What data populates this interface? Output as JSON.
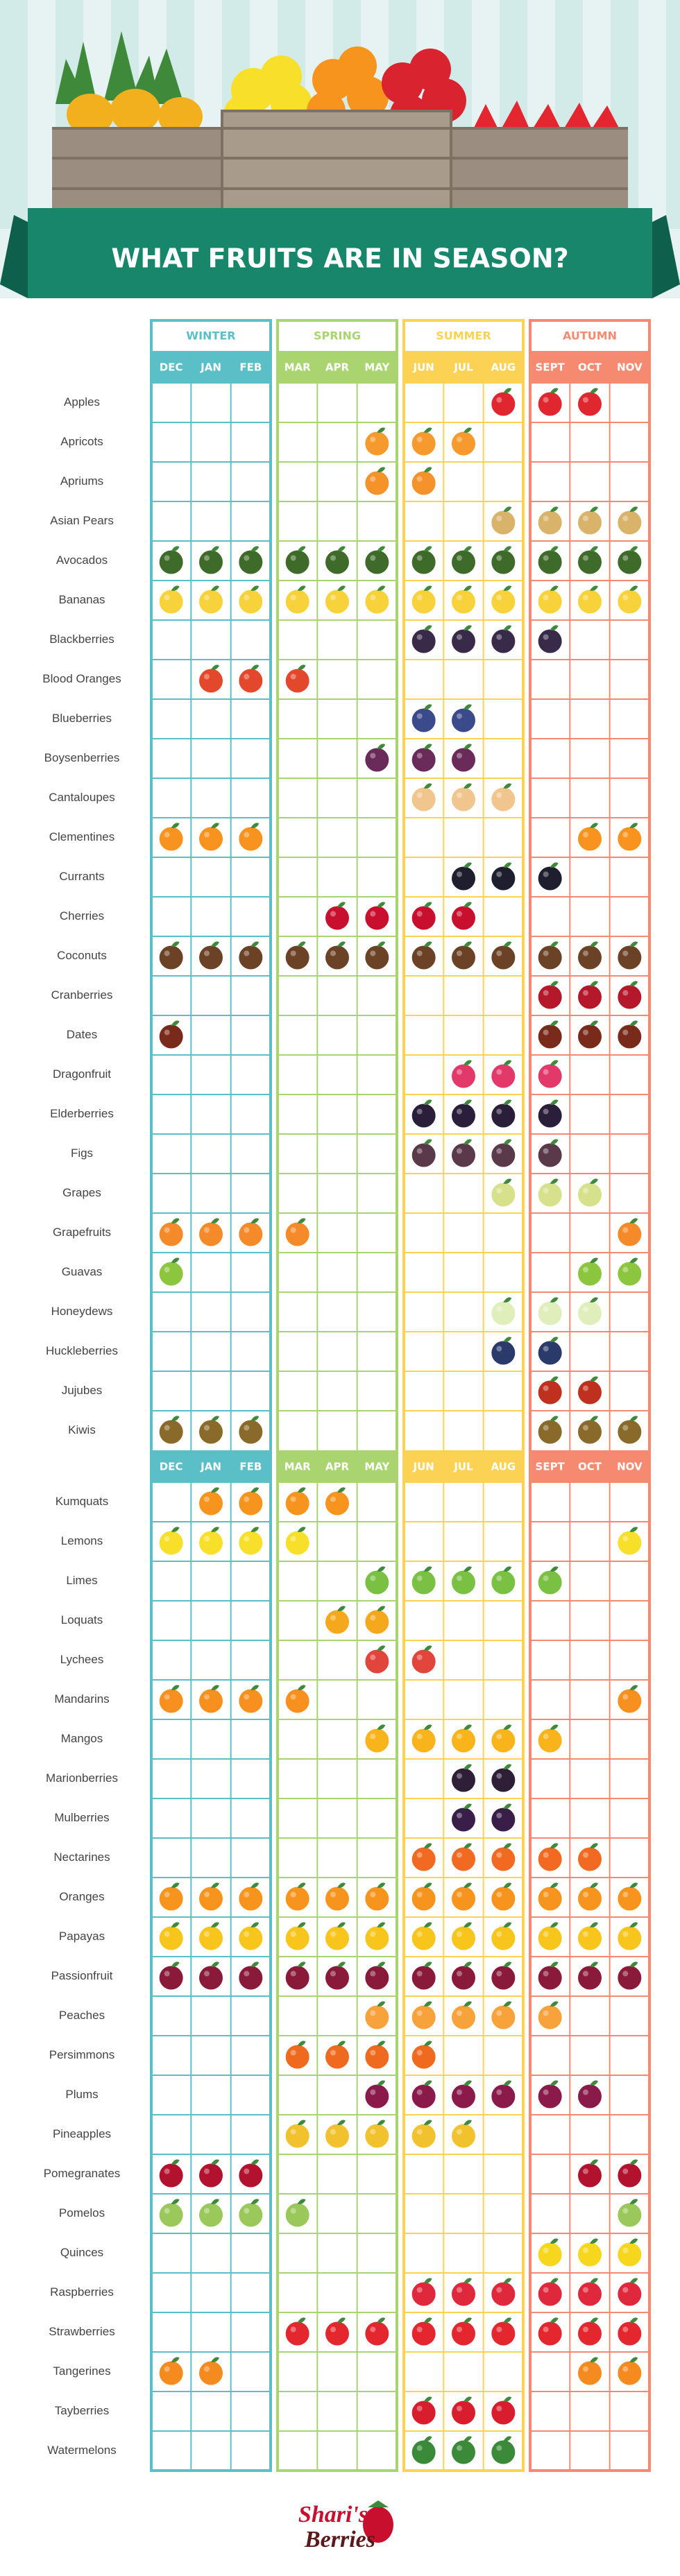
{
  "header": {
    "title": "WHAT FRUITS ARE IN SEASON?"
  },
  "seasons": [
    {
      "name": "WINTER",
      "color": "#5bbfc8",
      "months": [
        "DEC",
        "JAN",
        "FEB"
      ]
    },
    {
      "name": "SPRING",
      "color": "#a9d46f",
      "months": [
        "MAR",
        "APR",
        "MAY"
      ]
    },
    {
      "name": "SUMMER",
      "color": "#fbd254",
      "months": [
        "JUN",
        "JUL",
        "AUG"
      ]
    },
    {
      "name": "AUTUMN",
      "color": "#f68a70",
      "months": [
        "SEPT",
        "OCT",
        "NOV"
      ]
    }
  ],
  "fruits": [
    {
      "name": "Apples",
      "color": "#e0262e",
      "in_season": [
        0,
        0,
        0,
        0,
        0,
        0,
        0,
        0,
        1,
        1,
        1,
        0
      ]
    },
    {
      "name": "Apricots",
      "color": "#f79a2e",
      "in_season": [
        0,
        0,
        0,
        0,
        0,
        1,
        1,
        1,
        0,
        0,
        0,
        0
      ]
    },
    {
      "name": "Apriums",
      "color": "#f5922a",
      "in_season": [
        0,
        0,
        0,
        0,
        0,
        1,
        1,
        0,
        0,
        0,
        0,
        0
      ]
    },
    {
      "name": "Asian Pears",
      "color": "#d9b36a",
      "in_season": [
        0,
        0,
        0,
        0,
        0,
        0,
        0,
        0,
        1,
        1,
        1,
        1
      ]
    },
    {
      "name": "Avocados",
      "color": "#3f6b2a",
      "in_season": [
        1,
        1,
        1,
        1,
        1,
        1,
        1,
        1,
        1,
        1,
        1,
        1
      ]
    },
    {
      "name": "Bananas",
      "color": "#f7d23b",
      "in_season": [
        1,
        1,
        1,
        1,
        1,
        1,
        1,
        1,
        1,
        1,
        1,
        1
      ]
    },
    {
      "name": "Blackberries",
      "color": "#3a2a4a",
      "in_season": [
        0,
        0,
        0,
        0,
        0,
        0,
        1,
        1,
        1,
        1,
        0,
        0
      ]
    },
    {
      "name": "Blood Oranges",
      "color": "#e4482c",
      "in_season": [
        0,
        1,
        1,
        1,
        0,
        0,
        0,
        0,
        0,
        0,
        0,
        0
      ]
    },
    {
      "name": "Blueberries",
      "color": "#3a4a8a",
      "in_season": [
        0,
        0,
        0,
        0,
        0,
        0,
        1,
        1,
        0,
        0,
        0,
        0
      ]
    },
    {
      "name": "Boysenberries",
      "color": "#6a2a5a",
      "in_season": [
        0,
        0,
        0,
        0,
        0,
        1,
        1,
        1,
        0,
        0,
        0,
        0
      ]
    },
    {
      "name": "Cantaloupes",
      "color": "#f1c68e",
      "in_season": [
        0,
        0,
        0,
        0,
        0,
        0,
        1,
        1,
        1,
        0,
        0,
        0
      ]
    },
    {
      "name": "Clementines",
      "color": "#f7931e",
      "in_season": [
        1,
        1,
        1,
        0,
        0,
        0,
        0,
        0,
        0,
        0,
        1,
        1
      ]
    },
    {
      "name": "Currants",
      "color": "#1e1e2e",
      "in_season": [
        0,
        0,
        0,
        0,
        0,
        0,
        0,
        1,
        1,
        1,
        0,
        0
      ]
    },
    {
      "name": "Cherries",
      "color": "#c8102e",
      "in_season": [
        0,
        0,
        0,
        0,
        1,
        1,
        1,
        1,
        0,
        0,
        0,
        0
      ]
    },
    {
      "name": "Coconuts",
      "color": "#6b4226",
      "in_season": [
        1,
        1,
        1,
        1,
        1,
        1,
        1,
        1,
        1,
        1,
        1,
        1
      ]
    },
    {
      "name": "Cranberries",
      "color": "#b5172b",
      "in_season": [
        0,
        0,
        0,
        0,
        0,
        0,
        0,
        0,
        0,
        1,
        1,
        1
      ]
    },
    {
      "name": "Dates",
      "color": "#7a2a1a",
      "in_season": [
        1,
        0,
        0,
        0,
        0,
        0,
        0,
        0,
        0,
        1,
        1,
        1
      ]
    },
    {
      "name": "Dragonfruit",
      "color": "#e2386a",
      "in_season": [
        0,
        0,
        0,
        0,
        0,
        0,
        0,
        1,
        1,
        1,
        0,
        0
      ]
    },
    {
      "name": "Elderberries",
      "color": "#2a1e3a",
      "in_season": [
        0,
        0,
        0,
        0,
        0,
        0,
        1,
        1,
        1,
        1,
        0,
        0
      ]
    },
    {
      "name": "Figs",
      "color": "#5a3a4a",
      "in_season": [
        0,
        0,
        0,
        0,
        0,
        0,
        1,
        1,
        1,
        1,
        0,
        0
      ]
    },
    {
      "name": "Grapes",
      "color": "#d7e08a",
      "in_season": [
        0,
        0,
        0,
        0,
        0,
        0,
        0,
        0,
        1,
        1,
        1,
        0
      ]
    },
    {
      "name": "Grapefruits",
      "color": "#f58a2a",
      "in_season": [
        1,
        1,
        1,
        1,
        0,
        0,
        0,
        0,
        0,
        0,
        0,
        1
      ]
    },
    {
      "name": "Guavas",
      "color": "#8cc63f",
      "in_season": [
        1,
        0,
        0,
        0,
        0,
        0,
        0,
        0,
        0,
        0,
        1,
        1
      ]
    },
    {
      "name": "Honeydews",
      "color": "#dfeebb",
      "in_season": [
        0,
        0,
        0,
        0,
        0,
        0,
        0,
        0,
        1,
        1,
        1,
        0
      ]
    },
    {
      "name": "Huckleberries",
      "color": "#2a3a6a",
      "in_season": [
        0,
        0,
        0,
        0,
        0,
        0,
        0,
        0,
        1,
        1,
        0,
        0
      ]
    },
    {
      "name": "Jujubes",
      "color": "#c0301e",
      "in_season": [
        0,
        0,
        0,
        0,
        0,
        0,
        0,
        0,
        0,
        1,
        1,
        0
      ]
    },
    {
      "name": "Kiwis",
      "color": "#8a6a2a",
      "in_season": [
        1,
        1,
        1,
        0,
        0,
        0,
        0,
        0,
        0,
        1,
        1,
        1
      ]
    },
    {
      "name": "Kumquats",
      "color": "#f7941d",
      "in_season": [
        0,
        1,
        1,
        1,
        1,
        0,
        0,
        0,
        0,
        0,
        0,
        0
      ]
    },
    {
      "name": "Lemons",
      "color": "#f8e02a",
      "in_season": [
        1,
        1,
        1,
        1,
        0,
        0,
        0,
        0,
        0,
        0,
        0,
        1
      ]
    },
    {
      "name": "Limes",
      "color": "#7ac143",
      "in_season": [
        0,
        0,
        0,
        0,
        0,
        1,
        1,
        1,
        1,
        1,
        0,
        0
      ]
    },
    {
      "name": "Loquats",
      "color": "#f6a81c",
      "in_season": [
        0,
        0,
        0,
        0,
        1,
        1,
        0,
        0,
        0,
        0,
        0,
        0
      ]
    },
    {
      "name": "Lychees",
      "color": "#e2453c",
      "in_season": [
        0,
        0,
        0,
        0,
        0,
        1,
        1,
        0,
        0,
        0,
        0,
        0
      ]
    },
    {
      "name": "Mandarins",
      "color": "#f7901e",
      "in_season": [
        1,
        1,
        1,
        1,
        0,
        0,
        0,
        0,
        0,
        0,
        0,
        1
      ]
    },
    {
      "name": "Mangos",
      "color": "#f9b41b",
      "in_season": [
        0,
        0,
        0,
        0,
        0,
        1,
        1,
        1,
        1,
        1,
        0,
        0
      ]
    },
    {
      "name": "Marionberries",
      "color": "#2e1e36",
      "in_season": [
        0,
        0,
        0,
        0,
        0,
        0,
        0,
        1,
        1,
        0,
        0,
        0
      ]
    },
    {
      "name": "Mulberries",
      "color": "#3a1e4a",
      "in_season": [
        0,
        0,
        0,
        0,
        0,
        0,
        0,
        1,
        1,
        0,
        0,
        0
      ]
    },
    {
      "name": "Nectarines",
      "color": "#f26a21",
      "in_season": [
        0,
        0,
        0,
        0,
        0,
        0,
        1,
        1,
        1,
        1,
        1,
        0
      ]
    },
    {
      "name": "Oranges",
      "color": "#f7941d",
      "in_season": [
        1,
        1,
        1,
        1,
        1,
        1,
        1,
        1,
        1,
        1,
        1,
        1
      ]
    },
    {
      "name": "Papayas",
      "color": "#f8c51c",
      "in_season": [
        1,
        1,
        1,
        1,
        1,
        1,
        1,
        1,
        1,
        1,
        1,
        1
      ]
    },
    {
      "name": "Passionfruit",
      "color": "#8a1a3a",
      "in_season": [
        1,
        1,
        1,
        1,
        1,
        1,
        1,
        1,
        1,
        1,
        1,
        1
      ]
    },
    {
      "name": "Peaches",
      "color": "#f7a23a",
      "in_season": [
        0,
        0,
        0,
        0,
        0,
        1,
        1,
        1,
        1,
        1,
        0,
        0
      ]
    },
    {
      "name": "Persimmons",
      "color": "#ef6a1e",
      "in_season": [
        0,
        0,
        0,
        1,
        1,
        1,
        1,
        0,
        0,
        0,
        0,
        0
      ]
    },
    {
      "name": "Plums",
      "color": "#8a1a4a",
      "in_season": [
        0,
        0,
        0,
        0,
        0,
        1,
        1,
        1,
        1,
        1,
        1,
        0
      ]
    },
    {
      "name": "Pineapples",
      "color": "#f2c12e",
      "in_season": [
        0,
        0,
        0,
        1,
        1,
        1,
        1,
        1,
        0,
        0,
        0,
        0
      ]
    },
    {
      "name": "Pomegranates",
      "color": "#b3122e",
      "in_season": [
        1,
        1,
        1,
        0,
        0,
        0,
        0,
        0,
        0,
        0,
        1,
        1
      ]
    },
    {
      "name": "Pomelos",
      "color": "#9bc85a",
      "in_season": [
        1,
        1,
        1,
        1,
        0,
        0,
        0,
        0,
        0,
        0,
        0,
        1
      ]
    },
    {
      "name": "Quinces",
      "color": "#f6d71e",
      "in_season": [
        0,
        0,
        0,
        0,
        0,
        0,
        0,
        0,
        0,
        1,
        1,
        1
      ]
    },
    {
      "name": "Raspberries",
      "color": "#e0283c",
      "in_season": [
        0,
        0,
        0,
        0,
        0,
        0,
        1,
        1,
        1,
        1,
        1,
        1
      ]
    },
    {
      "name": "Strawberries",
      "color": "#e4262e",
      "in_season": [
        0,
        0,
        0,
        1,
        1,
        1,
        1,
        1,
        1,
        1,
        1,
        1
      ]
    },
    {
      "name": "Tangerines",
      "color": "#f58a1e",
      "in_season": [
        1,
        1,
        0,
        0,
        0,
        0,
        0,
        0,
        0,
        0,
        1,
        1
      ]
    },
    {
      "name": "Tayberries",
      "color": "#d81e2e",
      "in_season": [
        0,
        0,
        0,
        0,
        0,
        0,
        1,
        1,
        1,
        0,
        0,
        0
      ]
    },
    {
      "name": "Watermelons",
      "color": "#3a8a3a",
      "in_season": [
        0,
        0,
        0,
        0,
        0,
        0,
        1,
        1,
        1,
        0,
        0,
        0
      ]
    }
  ],
  "brand": {
    "line1": "Shari's",
    "line2": "Berries"
  }
}
